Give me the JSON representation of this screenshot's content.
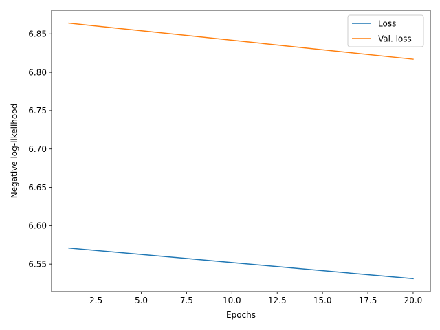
{
  "chart_data": {
    "type": "line",
    "title": "",
    "xlabel": "Epochs",
    "ylabel": "Negative log-likelihood",
    "xlim": [
      0.05,
      20.95
    ],
    "ylim": [
      6.5143,
      6.8807
    ],
    "xticks": [
      2.5,
      5.0,
      7.5,
      10.0,
      12.5,
      15.0,
      17.5,
      20.0
    ],
    "xtick_labels": [
      "2.5",
      "5.0",
      "7.5",
      "10.0",
      "12.5",
      "15.0",
      "17.5",
      "20.0"
    ],
    "yticks": [
      6.55,
      6.6,
      6.65,
      6.7,
      6.75,
      6.8,
      6.85
    ],
    "ytick_labels": [
      "6.55",
      "6.60",
      "6.65",
      "6.70",
      "6.75",
      "6.80",
      "6.85"
    ],
    "grid": false,
    "legend": "top-right",
    "series": [
      {
        "name": "Loss",
        "color": "#1f77b4",
        "x": [
          1,
          20
        ],
        "y": [
          6.571,
          6.531
        ]
      },
      {
        "name": "Val. loss",
        "color": "#ff7f0e",
        "x": [
          1,
          20
        ],
        "y": [
          6.864,
          6.817
        ]
      }
    ]
  }
}
